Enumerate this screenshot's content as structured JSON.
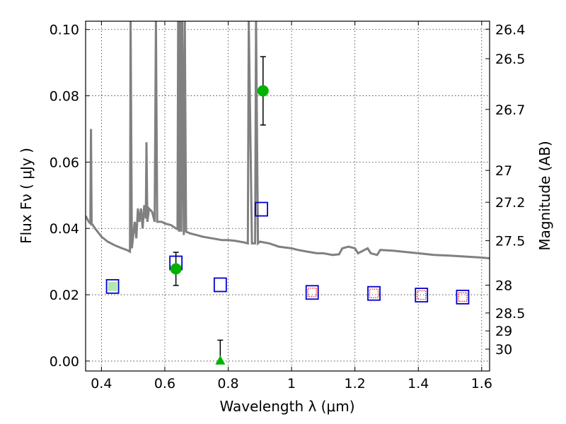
{
  "chart_data": {
    "type": "scatter",
    "title": "",
    "xlabel": "Wavelength  λ (μm)",
    "ylabel": "Flux  Fν  ( μJy )",
    "ylabel_right": "Magnitude (AB)",
    "xlim": [
      0.35,
      1.625
    ],
    "ylim": [
      -0.003,
      0.1025
    ],
    "grid": true,
    "x_ticks": [
      {
        "value": 0.4,
        "label": "0.4"
      },
      {
        "value": 0.6,
        "label": "0.6"
      },
      {
        "value": 0.8,
        "label": "0.8"
      },
      {
        "value": 1.0,
        "label": "1"
      },
      {
        "value": 1.2,
        "label": "1.2"
      },
      {
        "value": 1.4,
        "label": "1.4"
      },
      {
        "value": 1.6,
        "label": "1.6"
      }
    ],
    "y_ticks": [
      {
        "value": 0.0,
        "label": "0.00"
      },
      {
        "value": 0.02,
        "label": "0.02"
      },
      {
        "value": 0.04,
        "label": "0.04"
      },
      {
        "value": 0.06,
        "label": "0.06"
      },
      {
        "value": 0.08,
        "label": "0.08"
      },
      {
        "value": 0.1,
        "label": "0.10"
      }
    ],
    "right_ticks": [
      {
        "flux": 0.1001,
        "label": "26.4"
      },
      {
        "flux": 0.0912,
        "label": "26.5"
      },
      {
        "flux": 0.0759,
        "label": "26.7"
      },
      {
        "flux": 0.0575,
        "label": "27"
      },
      {
        "flux": 0.0479,
        "label": "27.2"
      },
      {
        "flux": 0.0363,
        "label": "27.5"
      },
      {
        "flux": 0.0229,
        "label": "28"
      },
      {
        "flux": 0.0145,
        "label": "28.5"
      },
      {
        "flux": 0.0091,
        "label": "29"
      },
      {
        "flux": 0.0036,
        "label": "30"
      }
    ],
    "model_sed": {
      "color": "#808080",
      "points": [
        [
          0.35,
          0.0438
        ],
        [
          0.36,
          0.042
        ],
        [
          0.365,
          0.0415
        ],
        [
          0.367,
          0.07
        ],
        [
          0.369,
          0.0415
        ],
        [
          0.38,
          0.04
        ],
        [
          0.4,
          0.0375
        ],
        [
          0.42,
          0.036
        ],
        [
          0.44,
          0.035
        ],
        [
          0.46,
          0.0342
        ],
        [
          0.48,
          0.0335
        ],
        [
          0.49,
          0.033
        ],
        [
          0.492,
          0.1025
        ],
        [
          0.496,
          0.034
        ],
        [
          0.505,
          0.042
        ],
        [
          0.51,
          0.037
        ],
        [
          0.515,
          0.046
        ],
        [
          0.52,
          0.042
        ],
        [
          0.525,
          0.046
        ],
        [
          0.53,
          0.04
        ],
        [
          0.535,
          0.047
        ],
        [
          0.54,
          0.043
        ],
        [
          0.542,
          0.066
        ],
        [
          0.545,
          0.042
        ],
        [
          0.55,
          0.046
        ],
        [
          0.56,
          0.045
        ],
        [
          0.568,
          0.042
        ],
        [
          0.572,
          0.1025
        ],
        [
          0.576,
          0.042
        ],
        [
          0.59,
          0.042
        ],
        [
          0.6,
          0.0415
        ],
        [
          0.62,
          0.041
        ],
        [
          0.635,
          0.04
        ],
        [
          0.64,
          0.0398
        ],
        [
          0.642,
          0.1025
        ],
        [
          0.645,
          0.039
        ],
        [
          0.648,
          0.1025
        ],
        [
          0.652,
          0.039
        ],
        [
          0.655,
          0.1025
        ],
        [
          0.66,
          0.038
        ],
        [
          0.663,
          0.1025
        ],
        [
          0.667,
          0.039
        ],
        [
          0.68,
          0.0385
        ],
        [
          0.7,
          0.038
        ],
        [
          0.72,
          0.0375
        ],
        [
          0.75,
          0.037
        ],
        [
          0.78,
          0.0365
        ],
        [
          0.8,
          0.0365
        ],
        [
          0.82,
          0.0363
        ],
        [
          0.85,
          0.0358
        ],
        [
          0.862,
          0.0355
        ],
        [
          0.865,
          0.1025
        ],
        [
          0.875,
          0.0355
        ],
        [
          0.885,
          0.0355
        ],
        [
          0.888,
          0.1025
        ],
        [
          0.894,
          0.0355
        ],
        [
          0.9,
          0.036
        ],
        [
          0.93,
          0.0355
        ],
        [
          0.96,
          0.0345
        ],
        [
          1.0,
          0.034
        ],
        [
          1.02,
          0.0335
        ],
        [
          1.05,
          0.033
        ],
        [
          1.08,
          0.0325
        ],
        [
          1.1,
          0.0325
        ],
        [
          1.13,
          0.032
        ],
        [
          1.15,
          0.0322
        ],
        [
          1.16,
          0.034
        ],
        [
          1.18,
          0.0345
        ],
        [
          1.2,
          0.034
        ],
        [
          1.21,
          0.0325
        ],
        [
          1.22,
          0.033
        ],
        [
          1.24,
          0.034
        ],
        [
          1.25,
          0.0325
        ],
        [
          1.27,
          0.032
        ],
        [
          1.28,
          0.0335
        ],
        [
          1.32,
          0.0333
        ],
        [
          1.35,
          0.033
        ],
        [
          1.4,
          0.0325
        ],
        [
          1.45,
          0.032
        ],
        [
          1.5,
          0.0318
        ],
        [
          1.55,
          0.0315
        ],
        [
          1.6,
          0.0312
        ],
        [
          1.625,
          0.031
        ]
      ]
    },
    "model_photometry": {
      "color": "#0000cc",
      "marker": "open-square",
      "points": [
        [
          0.435,
          0.0225
        ],
        [
          0.635,
          0.0296
        ],
        [
          0.775,
          0.023
        ],
        [
          0.905,
          0.0458
        ],
        [
          1.065,
          0.0207
        ],
        [
          1.26,
          0.0204
        ],
        [
          1.41,
          0.0199
        ],
        [
          1.54,
          0.0193
        ]
      ]
    },
    "observed_detections": {
      "color": "#00b300",
      "marker": "circle",
      "points": [
        {
          "x": 0.435,
          "y": 0.0225,
          "err": 0.0
        },
        {
          "x": 0.635,
          "y": 0.0278,
          "err": 0.005
        },
        {
          "x": 0.91,
          "y": 0.0815,
          "err": 0.0103
        }
      ]
    },
    "observed_upper_limit": {
      "color": "#00b300",
      "marker": "triangle",
      "points": [
        {
          "x": 0.775,
          "y": 0.0,
          "err_hi": 0.0063
        }
      ]
    },
    "nir_limits": {
      "color": "#ff0000",
      "marker": "dotted-square",
      "points": [
        [
          1.065,
          0.0207
        ],
        [
          1.26,
          0.0204
        ],
        [
          1.41,
          0.0199
        ],
        [
          1.54,
          0.0193
        ]
      ]
    }
  }
}
